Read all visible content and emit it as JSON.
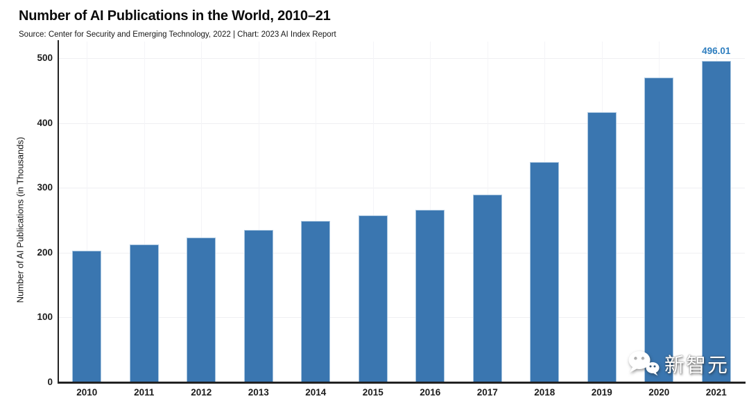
{
  "header": {
    "title": "Number of AI Publications in the World, 2010–21",
    "subtitle": "Source: Center for Security and Emerging Technology, 2022 | Chart: 2023 AI Index Report"
  },
  "chart_data": {
    "type": "bar",
    "title": "Number of AI Publications in the World, 2010–21",
    "source_note": "Source: Center for Security and Emerging Technology, 2022 | Chart: 2023 AI Index Report",
    "categories": [
      "2010",
      "2011",
      "2012",
      "2013",
      "2014",
      "2015",
      "2016",
      "2017",
      "2018",
      "2019",
      "2020",
      "2021"
    ],
    "values": [
      203,
      213,
      223,
      235,
      249,
      257,
      266,
      289,
      340,
      417,
      470,
      496.01
    ],
    "annotations": [
      {
        "category": "2021",
        "text": "496.01"
      }
    ],
    "xlabel": "",
    "ylabel": "Number of AI Publications (in Thousands)",
    "ylim": [
      0,
      500
    ],
    "yticks": [
      0,
      100,
      200,
      300,
      400,
      500
    ],
    "grid": true,
    "legend": "none",
    "colors": {
      "bar_fill": "#3a76b0",
      "bar_border": "#a9c6e0",
      "annotation_text": "#2e7ebf",
      "axis": "#222222",
      "gridline": "#efeff2"
    }
  },
  "watermark": {
    "label": "新智元",
    "icon": "wechat-icon"
  }
}
